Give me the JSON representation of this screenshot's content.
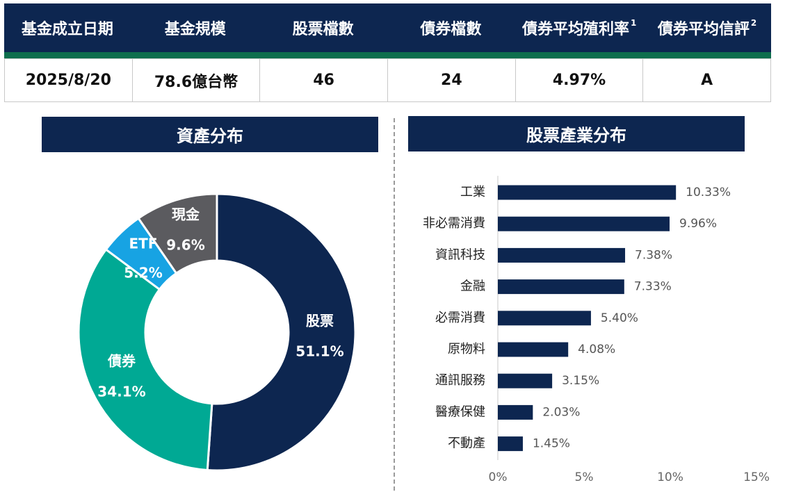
{
  "summary": {
    "headers": [
      {
        "label": "基金成立日期",
        "note": ""
      },
      {
        "label": "基金規模",
        "note": ""
      },
      {
        "label": "股票檔數",
        "note": ""
      },
      {
        "label": "債券檔數",
        "note": ""
      },
      {
        "label": "債券平均殖利率",
        "note": "1"
      },
      {
        "label": "債券平均信評",
        "note": "2"
      }
    ],
    "values": [
      "2025/8/20",
      "78.6億台幣",
      "46",
      "24",
      "4.97%",
      "A"
    ]
  },
  "titles": {
    "left": "資產分布",
    "right": "股票產業分布"
  },
  "colors": {
    "navy": "#0d2650",
    "green_strip": "#0e6e4d"
  },
  "chart_data": [
    {
      "type": "pie",
      "title": "資產分布",
      "donut": true,
      "slices": [
        {
          "label": "股票",
          "value": 51.1,
          "value_label": "51.1%",
          "color": "#0d2650"
        },
        {
          "label": "債券",
          "value": 34.1,
          "value_label": "34.1%",
          "color": "#00a994"
        },
        {
          "label": "ETF",
          "value": 5.2,
          "value_label": "5.2%",
          "color": "#17a3e3"
        },
        {
          "label": "現金",
          "value": 9.6,
          "value_label": "9.6%",
          "color": "#5b5b5f"
        }
      ]
    },
    {
      "type": "bar",
      "orientation": "horizontal",
      "title": "股票產業分布",
      "categories": [
        "工業",
        "非必需消費",
        "資訊科技",
        "金融",
        "必需消費",
        "原物料",
        "通訊服務",
        "醫療保健",
        "不動產"
      ],
      "values": [
        10.33,
        9.96,
        7.38,
        7.33,
        5.4,
        4.08,
        3.15,
        2.03,
        1.45
      ],
      "value_labels": [
        "10.33%",
        "9.96%",
        "7.38%",
        "7.33%",
        "5.40%",
        "4.08%",
        "3.15%",
        "2.03%",
        "1.45%"
      ],
      "xlim": [
        0,
        15
      ],
      "xticks": [
        0,
        5,
        10,
        15
      ],
      "xtick_labels": [
        "0%",
        "5%",
        "10%",
        "15%"
      ],
      "color": "#0d2650",
      "grid": false
    }
  ]
}
